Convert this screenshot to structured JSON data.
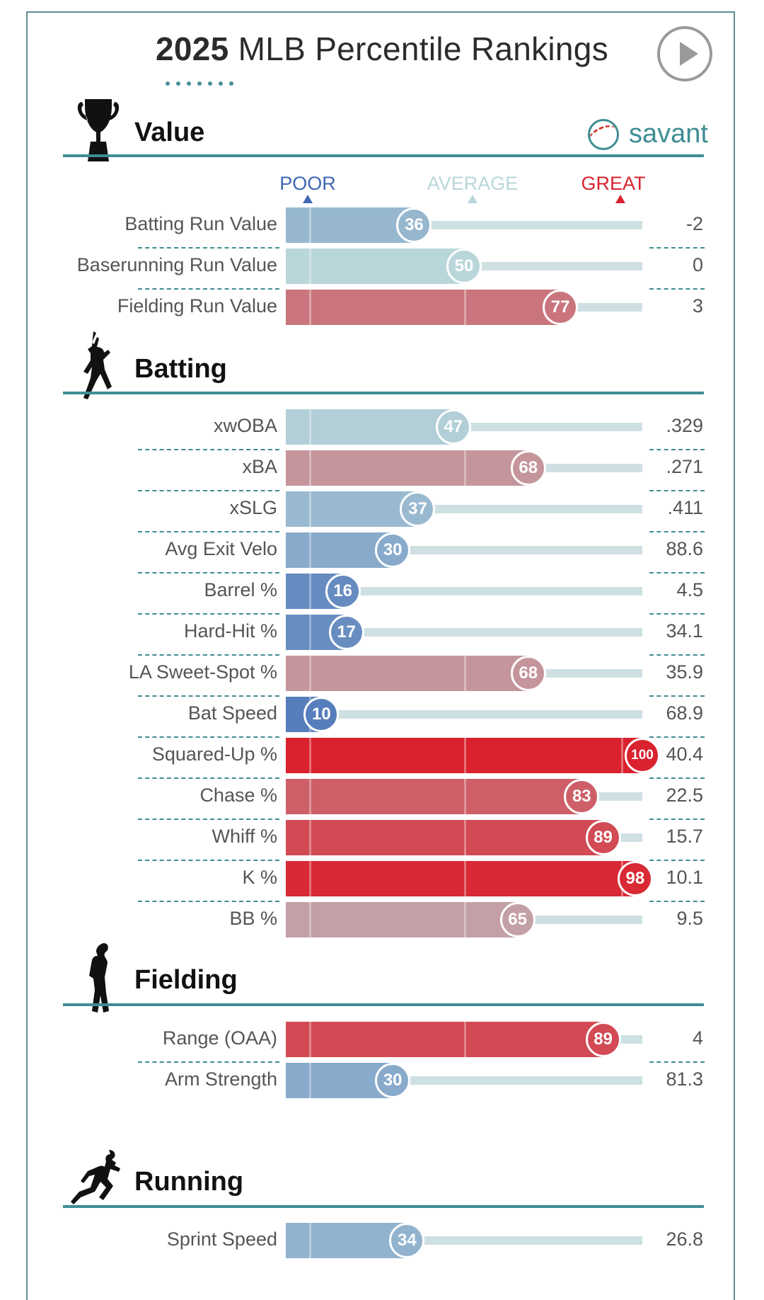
{
  "header": {
    "title_year": "2025",
    "title_rest": " MLB Percentile Rankings",
    "play_icon": "play-circle-icon",
    "brand": "savant"
  },
  "legend": {
    "poor": "POOR",
    "average": "AVERAGE",
    "great": "GREAT"
  },
  "colors": {
    "poor": "#3f68b4",
    "average": "#b9d6da",
    "great": "#d9222e",
    "track": "#cfe0e3",
    "accent": "#3f8d93"
  },
  "sections": [
    {
      "title": "Value",
      "icon": "trophy-icon"
    },
    {
      "title": "Batting",
      "icon": "batter-icon"
    },
    {
      "title": "Fielding",
      "icon": "fielder-icon"
    },
    {
      "title": "Running",
      "icon": "runner-icon"
    }
  ],
  "chart_data": {
    "type": "bar",
    "xlim": [
      0,
      100
    ],
    "groups": [
      {
        "section": "Value",
        "rows": [
          {
            "label": "Batting Run Value",
            "percentile": 36,
            "value": "-2"
          },
          {
            "label": "Baserunning Run Value",
            "percentile": 50,
            "value": "0"
          },
          {
            "label": "Fielding Run Value",
            "percentile": 77,
            "value": "3"
          }
        ]
      },
      {
        "section": "Batting",
        "rows": [
          {
            "label": "xwOBA",
            "percentile": 47,
            "value": ".329"
          },
          {
            "label": "xBA",
            "percentile": 68,
            "value": ".271"
          },
          {
            "label": "xSLG",
            "percentile": 37,
            "value": ".411"
          },
          {
            "label": "Avg Exit Velo",
            "percentile": 30,
            "value": "88.6"
          },
          {
            "label": "Barrel %",
            "percentile": 16,
            "value": "4.5"
          },
          {
            "label": "Hard-Hit %",
            "percentile": 17,
            "value": "34.1"
          },
          {
            "label": "LA Sweet-Spot %",
            "percentile": 68,
            "value": "35.9"
          },
          {
            "label": "Bat Speed",
            "percentile": 10,
            "value": "68.9"
          },
          {
            "label": "Squared-Up %",
            "percentile": 100,
            "value": "40.4"
          },
          {
            "label": "Chase %",
            "percentile": 83,
            "value": "22.5"
          },
          {
            "label": "Whiff %",
            "percentile": 89,
            "value": "15.7"
          },
          {
            "label": "K %",
            "percentile": 98,
            "value": "10.1"
          },
          {
            "label": "BB %",
            "percentile": 65,
            "value": "9.5"
          }
        ]
      },
      {
        "section": "Fielding",
        "rows": [
          {
            "label": "Range (OAA)",
            "percentile": 89,
            "value": "4"
          },
          {
            "label": "Arm Strength",
            "percentile": 30,
            "value": "81.3"
          }
        ]
      },
      {
        "section": "Running",
        "rows": [
          {
            "label": "Sprint Speed",
            "percentile": 34,
            "value": "26.8"
          }
        ]
      }
    ]
  }
}
